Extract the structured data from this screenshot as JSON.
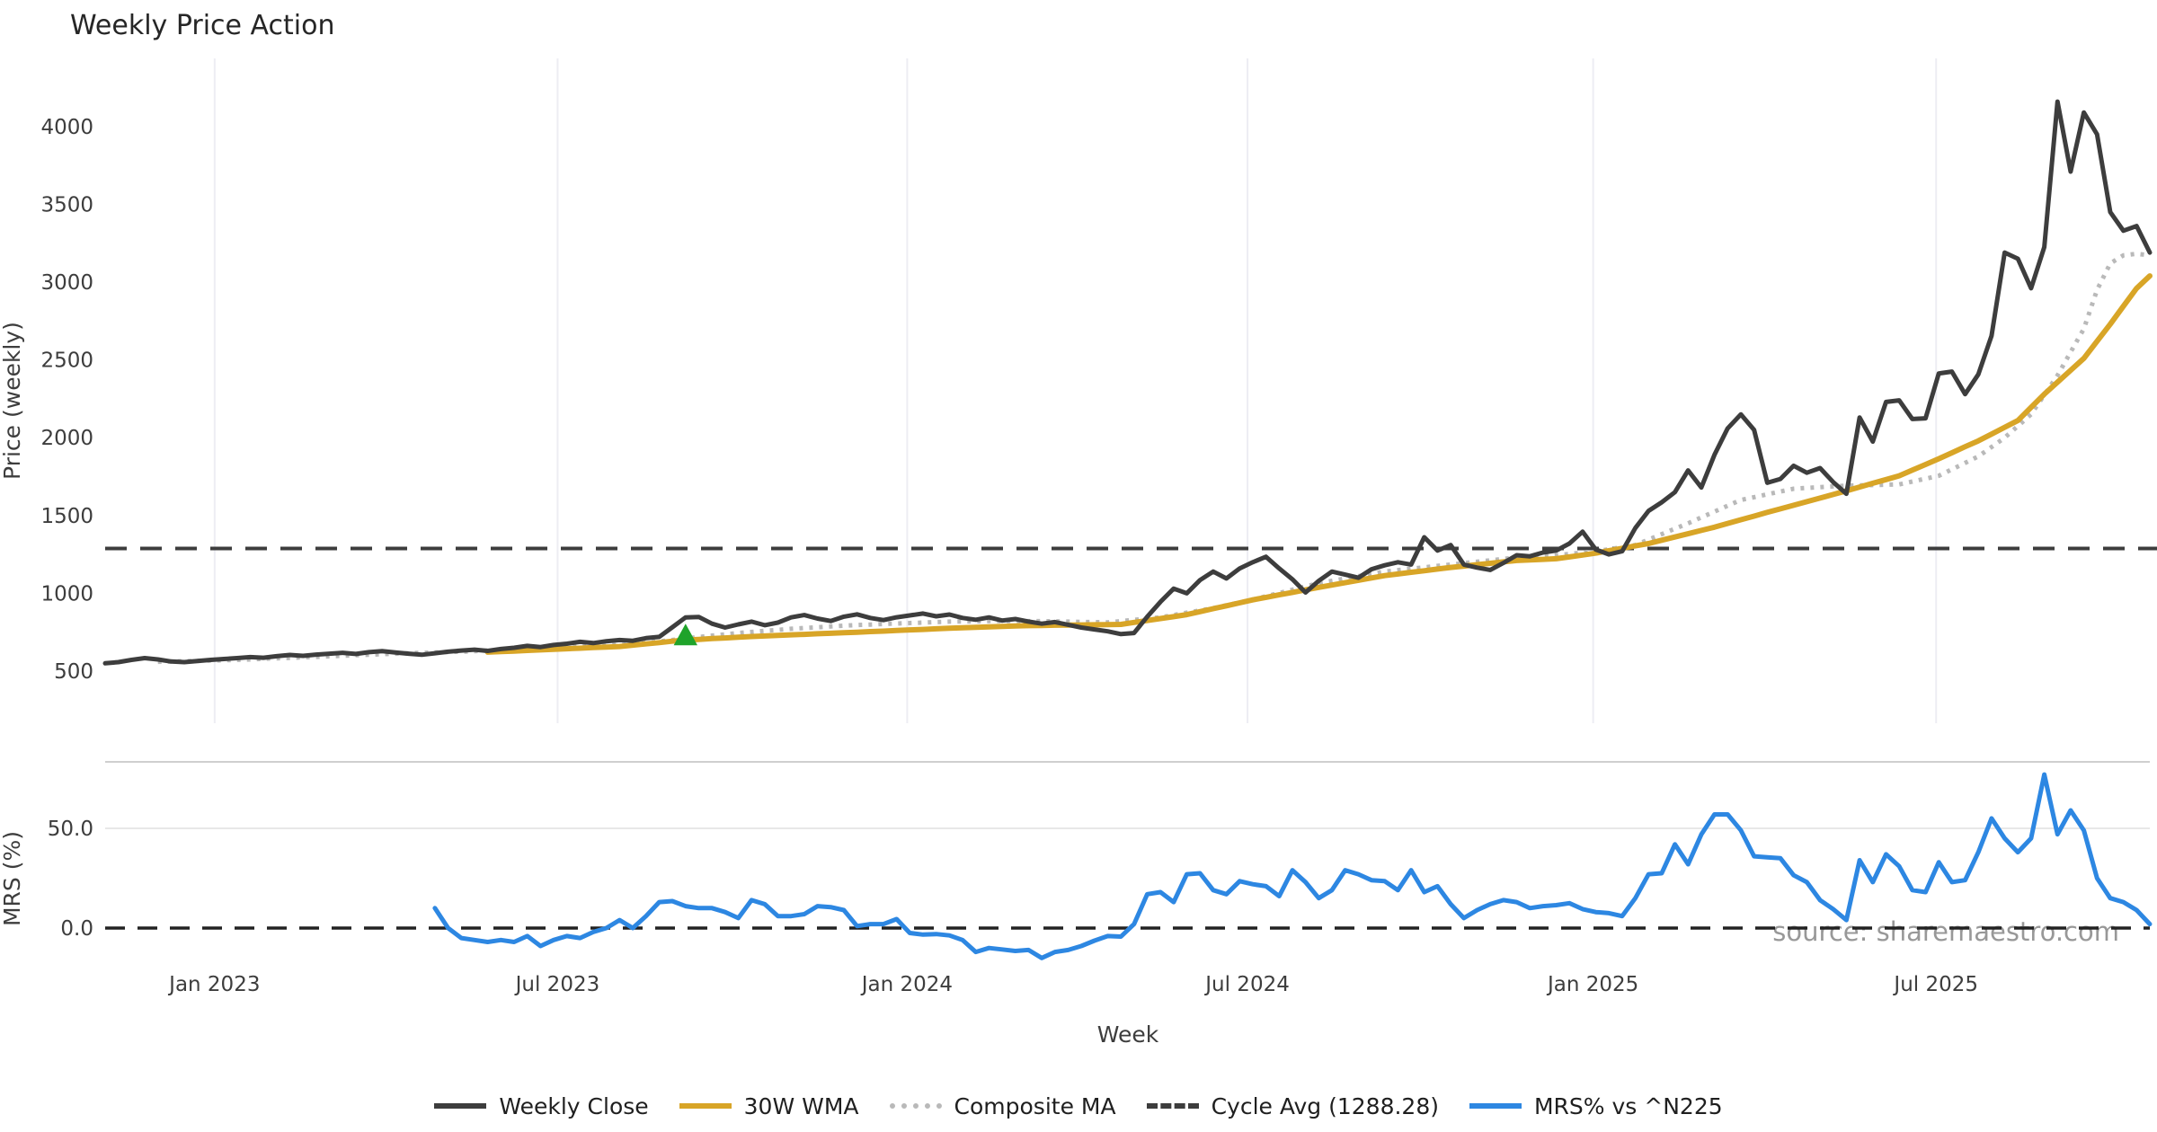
{
  "title": "Weekly Price Action",
  "watermark": "source: sharemaestro.com",
  "colors": {
    "weekly_close": "#3d3d3d",
    "wma": "#d8a527",
    "composite": "#b9b9b9",
    "cycle_avg": "#3d3d3d",
    "mrs": "#2d87e2",
    "marker_green": "#1fa32a",
    "gridline": "#ededf3",
    "mrs_gridline": "#e8e8e8",
    "panel_spine": "#cfcfcf",
    "zero_dash": "#222222"
  },
  "chart_data": {
    "type": "line",
    "title": "Weekly Price Action",
    "xlabel": "Week",
    "x_axis": {
      "ticks": [
        {
          "label": "Jan 2023",
          "week": 8.3
        },
        {
          "label": "Jul 2023",
          "week": 34.3
        },
        {
          "label": "Jan 2024",
          "week": 60.8
        },
        {
          "label": "Jul 2024",
          "week": 86.6
        },
        {
          "label": "Jan 2025",
          "week": 112.8
        },
        {
          "label": "Jul 2025",
          "week": 138.8
        }
      ],
      "weeks_total": 155
    },
    "panels": [
      {
        "id": "price",
        "ylabel": "Price (weekly)",
        "ylim": [
          160,
          4440
        ],
        "y_ticks": [
          500,
          1000,
          1500,
          2000,
          2500,
          3000,
          3500,
          4000
        ],
        "grid": "vertical-only",
        "series": [
          {
            "name": "Weekly Close",
            "color": "#3d3d3d",
            "style": "solid",
            "width": 5,
            "start_week": 0,
            "values": [
              550,
              558,
              572,
              584,
              575,
              562,
              558,
              565,
              572,
              578,
              584,
              590,
              586,
              596,
              604,
              598,
              606,
              612,
              618,
              610,
              622,
              628,
              620,
              612,
              605,
              615,
              625,
              632,
              638,
              630,
              642,
              650,
              662,
              655,
              668,
              676,
              688,
              680,
              692,
              700,
              695,
              712,
              720,
              782,
              845,
              848,
              805,
              780,
              800,
              818,
              795,
              812,
              845,
              860,
              838,
              822,
              850,
              865,
              842,
              828,
              846,
              858,
              870,
              852,
              864,
              842,
              830,
              845,
              825,
              835,
              818,
              805,
              815,
              798,
              780,
              768,
              756,
              738,
              745,
              850,
              945,
              1030,
              1000,
              1085,
              1140,
              1095,
              1160,
              1200,
              1235,
              1160,
              1090,
              1005,
              1080,
              1140,
              1120,
              1100,
              1155,
              1180,
              1200,
              1185,
              1360,
              1275,
              1310,
              1185,
              1165,
              1150,
              1195,
              1245,
              1238,
              1262,
              1275,
              1320,
              1396,
              1282,
              1250,
              1270,
              1420,
              1530,
              1585,
              1650,
              1790,
              1680,
              1890,
              2060,
              2150,
              2050,
              1710,
              1735,
              1820,
              1775,
              1805,
              1715,
              1640,
              2130,
              1975,
              2230,
              2240,
              2120,
              2125,
              2413,
              2425,
              2280,
              2407,
              2655,
              3190,
              3150,
              2960,
              3225,
              4160,
              3710,
              4090,
              3950,
              3450,
              3330,
              3360,
              3190
            ]
          },
          {
            "name": "30W WMA",
            "color": "#d8a527",
            "style": "solid",
            "width": 6,
            "start_week": 29,
            "values": [
              622,
              626,
              629,
              633,
              636,
              640,
              644,
              647,
              651,
              654,
              658,
              666,
              675,
              683,
              692,
              700,
              704,
              709,
              713,
              718,
              722,
              726,
              729,
              733,
              736,
              740,
              743,
              747,
              750,
              754,
              757,
              761,
              765,
              768,
              772,
              776,
              779,
              782,
              784,
              787,
              790,
              792,
              793,
              795,
              796,
              797,
              798,
              799,
              800,
              813,
              825,
              838,
              850,
              863,
              882,
              901,
              920,
              939,
              958,
              974,
              990,
              1006,
              1022,
              1038,
              1053,
              1068,
              1084,
              1099,
              1114,
              1124,
              1135,
              1145,
              1156,
              1166,
              1175,
              1184,
              1193,
              1202,
              1211,
              1215,
              1218,
              1222,
              1234,
              1246,
              1258,
              1274,
              1289,
              1305,
              1320,
              1341,
              1362,
              1383,
              1404,
              1425,
              1449,
              1473,
              1496,
              1520,
              1543,
              1566,
              1589,
              1612,
              1635,
              1659,
              1683,
              1707,
              1731,
              1755,
              1792,
              1828,
              1865,
              1903,
              1942,
              1980,
              2023,
              2067,
              2110,
              2195,
              2280,
              2357,
              2433,
              2510,
              2620,
              2730,
              2845,
              2960,
              3040
            ]
          },
          {
            "name": "Composite MA",
            "color": "#b9b9b9",
            "style": "dotted",
            "width": 5,
            "start_week": 4,
            "values": [
              560,
              562,
              564,
              566,
              568,
              570,
              572,
              575,
              579,
              582,
              585,
              589,
              592,
              595,
              599,
              602,
              605,
              609,
              612,
              615,
              617,
              620,
              623,
              625,
              628,
              632,
              635,
              639,
              643,
              646,
              650,
              654,
              657,
              661,
              665,
              668,
              672,
              682,
              691,
              700,
              710,
              719,
              728,
              736,
              745,
              752,
              759,
              765,
              772,
              777,
              782,
              787,
              792,
              796,
              799,
              803,
              806,
              809,
              812,
              815,
              818,
              819,
              820,
              822,
              823,
              822,
              821,
              821,
              820,
              818,
              816,
              815,
              813,
              821,
              829,
              837,
              845,
              860,
              875,
              890,
              905,
              923,
              941,
              960,
              981,
              1002,
              1023,
              1044,
              1065,
              1080,
              1095,
              1110,
              1125,
              1140,
              1149,
              1158,
              1167,
              1176,
              1185,
              1194,
              1203,
              1212,
              1221,
              1230,
              1235,
              1240,
              1245,
              1253,
              1262,
              1270,
              1283,
              1297,
              1310,
              1345,
              1380,
              1415,
              1450,
              1488,
              1525,
              1563,
              1600,
              1618,
              1636,
              1654,
              1672,
              1677,
              1682,
              1687,
              1692,
              1694,
              1696,
              1698,
              1700,
              1718,
              1737,
              1755,
              1797,
              1838,
              1880,
              1940,
              2000,
              2075,
              2150,
              2275,
              2400,
              2550,
              2700,
              2950,
              3120,
              3172,
              3182,
              3172
            ]
          },
          {
            "name": "Cycle Avg (1288.28)",
            "color": "#3d3d3d",
            "style": "dashed",
            "type": "hline",
            "value": 1288.28
          }
        ],
        "markers": [
          {
            "shape": "triangle-up",
            "week": 44,
            "price": 728,
            "color": "#1fa32a",
            "size": 24
          }
        ]
      },
      {
        "id": "mrs",
        "ylabel": "MRS (%)",
        "ylim": [
          -16,
          83
        ],
        "y_ticks": [
          0.0,
          50.0
        ],
        "series": [
          {
            "name": "MRS% vs ^N225",
            "color": "#2d87e2",
            "style": "solid",
            "width": 5,
            "start_week": 25,
            "values": [
              10,
              0,
              -5,
              -6,
              -7,
              -6,
              -7,
              -4,
              -9,
              -6,
              -4,
              -5,
              -2,
              0,
              4,
              0,
              6,
              13,
              13.5,
              11,
              10,
              10,
              8,
              5,
              14,
              12,
              6,
              6,
              7,
              11,
              10.5,
              9,
              1,
              2,
              2,
              4.5,
              -2.5,
              -3.3,
              -3,
              -3.7,
              -6,
              -12,
              -10,
              -10.7,
              -11.5,
              -11,
              -15,
              -12,
              -11,
              -9,
              -6.3,
              -4,
              -4.3,
              2,
              17,
              18,
              13,
              27,
              27.5,
              19,
              17,
              23.5,
              22,
              21,
              16,
              29,
              23,
              15,
              19,
              29,
              27,
              24,
              23.5,
              19,
              29,
              18,
              21,
              12,
              5,
              9,
              12,
              14,
              13,
              10,
              11,
              11.5,
              12.5,
              9.5,
              8,
              7.5,
              6,
              15,
              27,
              27.5,
              42,
              32,
              47,
              57,
              57,
              49,
              36,
              35.5,
              35,
              26.5,
              23,
              14,
              9.5,
              4,
              34,
              23,
              37,
              31,
              19,
              18,
              33,
              23,
              24,
              38,
              55,
              45,
              38,
              45,
              77,
              47,
              59,
              49,
              25,
              15,
              13,
              9,
              2
            ]
          },
          {
            "name": "zero-line",
            "color": "#222222",
            "style": "dashed",
            "type": "hline",
            "value": 0
          }
        ]
      }
    ],
    "legend": {
      "position": "bottom-center",
      "items": [
        {
          "label": "Weekly Close",
          "color": "#3d3d3d",
          "style": "solid"
        },
        {
          "label": "30W WMA",
          "color": "#d8a527",
          "style": "solid"
        },
        {
          "label": "Composite MA",
          "color": "#b9b9b9",
          "style": "dotted"
        },
        {
          "label": "Cycle Avg (1288.28)",
          "color": "#3d3d3d",
          "style": "dashed"
        },
        {
          "label": "MRS% vs ^N225",
          "color": "#2d87e2",
          "style": "solid"
        }
      ]
    }
  }
}
